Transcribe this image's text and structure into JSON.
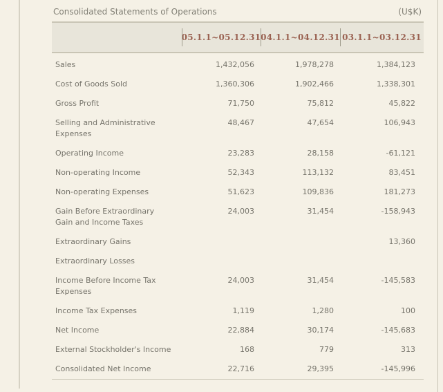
{
  "header": {
    "title": "Consolidated Statements of Operations",
    "unit": "(U$K)"
  },
  "table": {
    "columns": [
      "05.1.1~05.12.31",
      "04.1.1~04.12.31",
      "03.1.1~03.12.31"
    ],
    "rows": [
      {
        "label": "Sales",
        "values": [
          "1,432,056",
          "1,978,278",
          "1,384,123"
        ]
      },
      {
        "label": "Cost of Goods Sold",
        "values": [
          "1,360,306",
          "1,902,466",
          "1,338,301"
        ]
      },
      {
        "label": "Gross Profit",
        "values": [
          "71,750",
          "75,812",
          "45,822"
        ]
      },
      {
        "label": "Selling and Administrative\nExpenses",
        "values": [
          "48,467",
          "47,654",
          "106,943"
        ]
      },
      {
        "label": "Operating Income",
        "values": [
          "23,283",
          "28,158",
          "-61,121"
        ]
      },
      {
        "label": "Non-operating Income",
        "values": [
          "52,343",
          "113,132",
          "83,451"
        ]
      },
      {
        "label": "Non-operating Expenses",
        "values": [
          "51,623",
          "109,836",
          "181,273"
        ]
      },
      {
        "label": "Gain Before Extraordinary\nGain and Income Taxes",
        "values": [
          "24,003",
          "31,454",
          "-158,943"
        ]
      },
      {
        "label": "Extraordinary Gains",
        "values": [
          "",
          "",
          "13,360"
        ]
      },
      {
        "label": "Extraordinary Losses",
        "values": [
          "",
          "",
          ""
        ]
      },
      {
        "label": "Income Before Income Tax\nExpenses",
        "values": [
          "24,003",
          "31,454",
          "-145,583"
        ]
      },
      {
        "label": "Income Tax Expenses",
        "values": [
          "1,119",
          "1,280",
          "100"
        ]
      },
      {
        "label": "Net Income",
        "values": [
          "22,884",
          "30,174",
          "-145,683"
        ]
      },
      {
        "label": "External Stockholder's Income",
        "values": [
          "168",
          "779",
          "313"
        ]
      },
      {
        "label": "Consolidated Net Income",
        "values": [
          "22,716",
          "29,395",
          "-145,996"
        ]
      }
    ]
  },
  "colors": {
    "background": "#f5f1e6",
    "header_fill": "#e8e5da",
    "header_border": "#c9c5b5",
    "accent_text": "#9a6252",
    "body_text": "#76746b"
  }
}
